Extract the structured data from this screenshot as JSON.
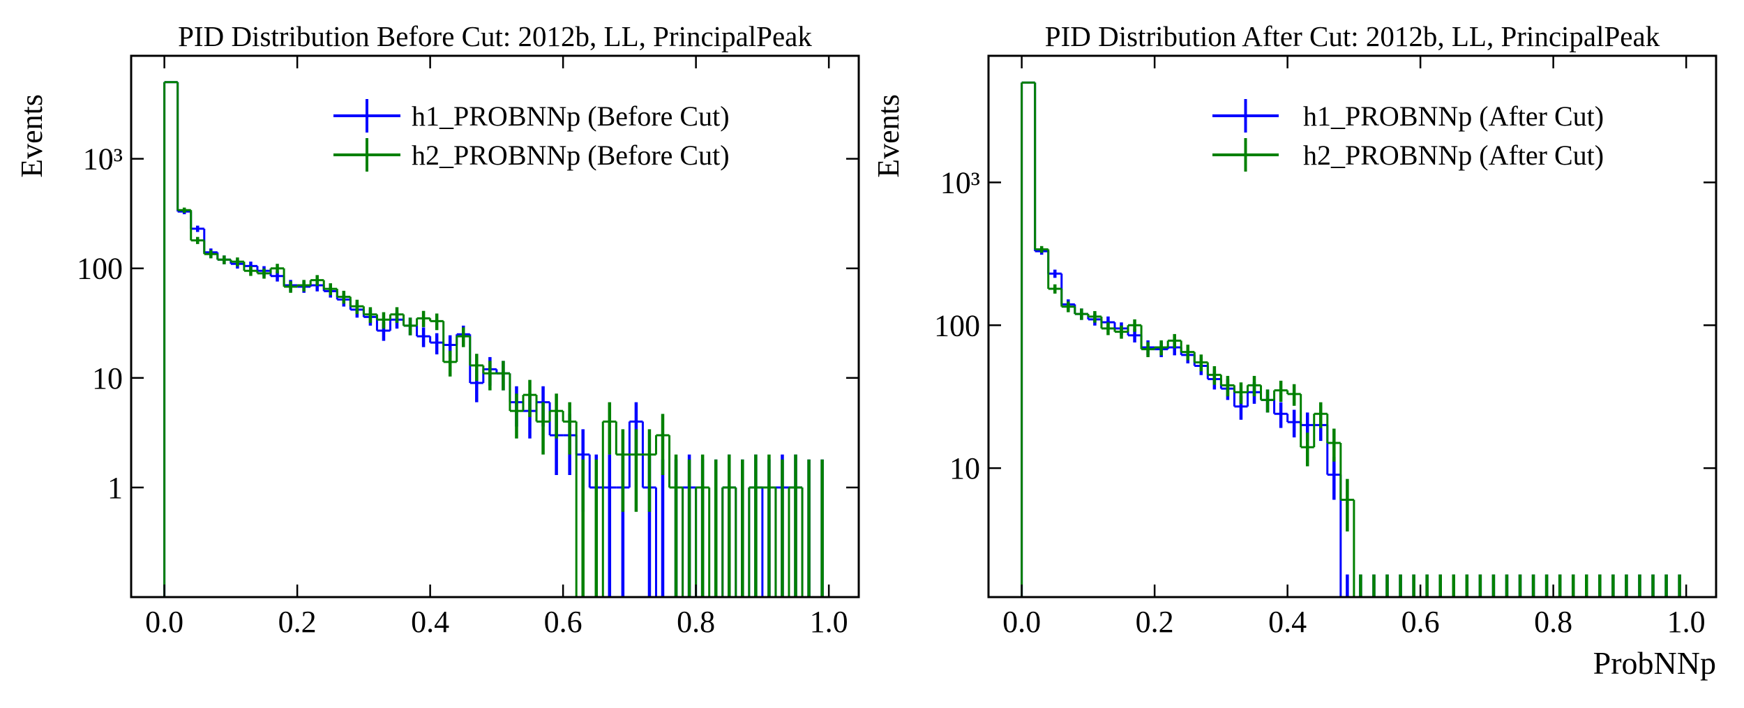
{
  "chart_data": [
    {
      "type": "histogram",
      "title": "PID Distribution Before Cut: 2012b, LL, PrincipalPeak",
      "y_label": "Events",
      "log_y": true,
      "legend": "upper right",
      "xlim": [
        -0.05,
        1.045
      ],
      "ylim": [
        0.1,
        8700
      ],
      "xticks": [
        {
          "value": 0,
          "label": "0.0"
        },
        {
          "value": 0.2,
          "label": "0.2"
        },
        {
          "value": 0.4,
          "label": "0.4"
        },
        {
          "value": 0.6,
          "label": "0.6"
        },
        {
          "value": 0.8,
          "label": "0.8"
        },
        {
          "value": 1,
          "label": "1.0"
        }
      ],
      "yticks": [
        1,
        10,
        100,
        {
          "value": 1000,
          "label": "10³"
        }
      ],
      "bins": [
        0,
        0.02,
        0.04,
        0.06,
        0.08,
        0.1,
        0.12,
        0.14,
        0.16,
        0.18,
        0.2,
        0.22,
        0.24,
        0.26,
        0.28,
        0.3,
        0.32,
        0.34,
        0.36,
        0.38,
        0.4,
        0.42,
        0.44,
        0.46,
        0.48,
        0.5,
        0.52,
        0.54,
        0.56,
        0.58,
        0.6,
        0.62,
        0.64,
        0.66,
        0.68,
        0.7,
        0.72,
        0.74,
        0.76,
        0.78,
        0.8,
        0.82,
        0.84,
        0.86,
        0.88,
        0.9,
        0.92,
        0.94,
        0.96,
        0.98,
        1
      ],
      "series": [
        {
          "name": "h1_PROBNNp (Before Cut)",
          "color": "#0000ff",
          "values": [
            5000,
            330,
            230,
            140,
            120,
            110,
            105,
            95,
            85,
            70,
            68,
            70,
            62,
            52,
            42,
            36,
            27,
            34,
            30,
            24,
            21,
            20,
            25,
            9,
            12,
            11,
            6,
            5,
            6,
            3,
            3,
            2,
            1,
            1,
            1,
            4,
            1,
            0,
            0,
            1,
            0,
            0,
            1,
            0,
            1,
            0,
            1,
            1,
            0,
            0
          ],
          "errors": [
            70.7,
            18.2,
            15.2,
            11.8,
            11,
            10.5,
            10.2,
            9.7,
            9.2,
            8.4,
            8.2,
            8.4,
            7.9,
            7.2,
            6.5,
            6,
            5.2,
            5.8,
            5.5,
            4.9,
            4.6,
            4.5,
            5,
            3,
            3.5,
            3.3,
            2.4,
            2.2,
            2.4,
            1.7,
            1.7,
            1.4,
            1,
            1,
            1,
            2,
            1,
            1.8,
            1.8,
            1,
            1.8,
            1.8,
            1,
            1.8,
            1,
            1.8,
            1,
            1,
            1.8,
            1.8
          ]
        },
        {
          "name": "h2_PROBNNp (Before Cut)",
          "color": "#008000",
          "values": [
            5000,
            340,
            180,
            135,
            120,
            115,
            95,
            90,
            100,
            68,
            70,
            78,
            65,
            55,
            45,
            38,
            34,
            38,
            30,
            35,
            33,
            14,
            24,
            13,
            11,
            11,
            5,
            7,
            4,
            5,
            4,
            0,
            0,
            4,
            2,
            2,
            2,
            3,
            1,
            0,
            1,
            0,
            1,
            0,
            1,
            1,
            0,
            1,
            0,
            0
          ],
          "errors": [
            70.7,
            18.4,
            13.4,
            11.6,
            11,
            10.7,
            9.7,
            9.5,
            10,
            8.2,
            8.4,
            8.8,
            8.1,
            7.4,
            6.7,
            6.2,
            5.8,
            6.2,
            5.5,
            5.9,
            5.7,
            3.7,
            4.9,
            3.6,
            3.3,
            3.3,
            2.2,
            2.6,
            2,
            2.2,
            2,
            1.8,
            1.8,
            2,
            1.4,
            1.4,
            1.4,
            1.7,
            1,
            1.8,
            1,
            1.8,
            1,
            1.8,
            1,
            1,
            1.8,
            1,
            1.8,
            1.8
          ]
        }
      ]
    },
    {
      "type": "histogram",
      "title": "PID Distribution After Cut: 2012b, LL, PrincipalPeak",
      "y_label": "Events",
      "x_label": "ProbNNp",
      "log_y": true,
      "legend": "upper right",
      "xlim": [
        -0.05,
        1.045
      ],
      "ylim": [
        1.25,
        7700
      ],
      "xticks": [
        {
          "value": 0,
          "label": "0.0"
        },
        {
          "value": 0.2,
          "label": "0.2"
        },
        {
          "value": 0.4,
          "label": "0.4"
        },
        {
          "value": 0.6,
          "label": "0.6"
        },
        {
          "value": 0.8,
          "label": "0.8"
        },
        {
          "value": 1,
          "label": "1.0"
        }
      ],
      "yticks": [
        10,
        100,
        {
          "value": 1000,
          "label": "10³"
        }
      ],
      "bins": [
        0,
        0.02,
        0.04,
        0.06,
        0.08,
        0.1,
        0.12,
        0.14,
        0.16,
        0.18,
        0.2,
        0.22,
        0.24,
        0.26,
        0.28,
        0.3,
        0.32,
        0.34,
        0.36,
        0.38,
        0.4,
        0.42,
        0.44,
        0.46,
        0.48,
        0.5,
        0.52,
        0.54,
        0.56,
        0.58,
        0.6,
        0.62,
        0.64,
        0.66,
        0.68,
        0.7,
        0.72,
        0.74,
        0.76,
        0.78,
        0.8,
        0.82,
        0.84,
        0.86,
        0.88,
        0.9,
        0.92,
        0.94,
        0.96,
        0.98,
        1
      ],
      "series": [
        {
          "name": "h1_PROBNNp (After Cut)",
          "color": "#0000ff",
          "values": [
            5000,
            330,
            230,
            140,
            120,
            110,
            105,
            95,
            85,
            70,
            68,
            70,
            62,
            52,
            42,
            36,
            27,
            34,
            30,
            24,
            21,
            20,
            20,
            9,
            0,
            0,
            0,
            0,
            0,
            0,
            0,
            0,
            0,
            0,
            0,
            0,
            0,
            0,
            0,
            0,
            0,
            0,
            0,
            0,
            0,
            0,
            0,
            0,
            0,
            0
          ],
          "errors": [
            70.7,
            18.2,
            15.2,
            11.8,
            11,
            10.5,
            10.2,
            9.7,
            9.2,
            8.4,
            8.2,
            8.4,
            7.9,
            7.2,
            6.5,
            6,
            5.2,
            5.8,
            5.5,
            4.9,
            4.6,
            4.5,
            4.5,
            3,
            1.8,
            1.8,
            1.8,
            1.8,
            1.8,
            1.8,
            1.8,
            1.8,
            1.8,
            1.8,
            1.8,
            1.8,
            1.8,
            1.8,
            1.8,
            1.8,
            1.8,
            1.8,
            1.8,
            1.8,
            1.8,
            1.8,
            1.8,
            1.8,
            1.8,
            1.8
          ]
        },
        {
          "name": "h2_PROBNNp (After Cut)",
          "color": "#008000",
          "values": [
            5000,
            340,
            180,
            135,
            120,
            115,
            95,
            90,
            100,
            68,
            70,
            78,
            65,
            55,
            45,
            38,
            34,
            38,
            30,
            35,
            33,
            14,
            24,
            15,
            6,
            0,
            0,
            0,
            0,
            0,
            0,
            0,
            0,
            0,
            0,
            0,
            0,
            0,
            0,
            0,
            0,
            0,
            0,
            0,
            0,
            0,
            0,
            0,
            0,
            0
          ],
          "errors": [
            70.7,
            18.4,
            13.4,
            11.6,
            11,
            10.7,
            9.7,
            9.5,
            10,
            8.2,
            8.4,
            8.8,
            8.1,
            7.4,
            6.7,
            6.2,
            5.8,
            6.2,
            5.5,
            5.9,
            5.7,
            3.7,
            4.9,
            3.9,
            2.4,
            1.8,
            1.8,
            1.8,
            1.8,
            1.8,
            1.8,
            1.8,
            1.8,
            1.8,
            1.8,
            1.8,
            1.8,
            1.8,
            1.8,
            1.8,
            1.8,
            1.8,
            1.8,
            1.8,
            1.8,
            1.8,
            1.8,
            1.8,
            1.8,
            1.8
          ]
        }
      ]
    }
  ]
}
